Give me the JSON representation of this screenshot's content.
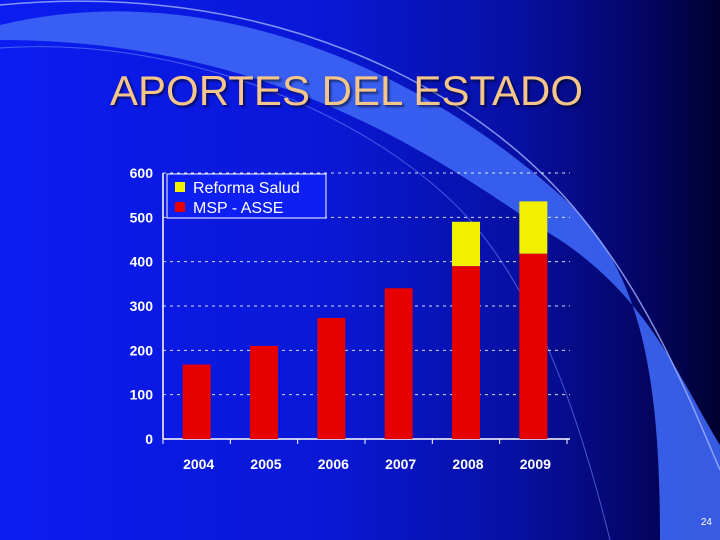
{
  "slide": {
    "title": "APORTES DEL ESTADO",
    "page_number": "24"
  },
  "colors": {
    "background_left": "#0b1cf0",
    "background_right": "#000030",
    "accent_light_blue": "#3d66f5",
    "title": "#f5c58a",
    "series_msp": "#e60000",
    "series_reforma": "#f0f000"
  },
  "chart_data": {
    "type": "bar",
    "stacked": true,
    "title": "",
    "xlabel": "",
    "ylabel": "",
    "categories": [
      "2004",
      "2005",
      "2006",
      "2007",
      "2008",
      "2009"
    ],
    "ylim": [
      0,
      600
    ],
    "yticks": [
      0,
      100,
      200,
      300,
      400,
      500,
      600
    ],
    "grid": "horizontal dashed",
    "legend_position": "top-left",
    "series": [
      {
        "name": "MSP - ASSE",
        "color": "#e60000",
        "values": [
          168,
          210,
          273,
          340,
          390,
          418
        ]
      },
      {
        "name": "Reforma Salud",
        "color": "#f0f000",
        "values": [
          0,
          0,
          0,
          0,
          100,
          118
        ]
      }
    ]
  }
}
